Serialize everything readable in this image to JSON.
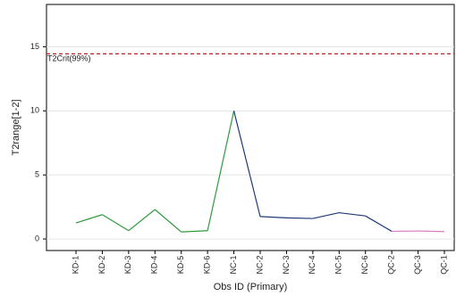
{
  "chart_data": {
    "type": "line",
    "x_label": "Obs ID (Primary)",
    "y_label": "T2range[1-2]",
    "categories": [
      "KD-1",
      "KD-2",
      "KD-3",
      "KD-4",
      "KD-5",
      "KD-6",
      "NC-1",
      "NC-2",
      "NC-3",
      "NC-4",
      "NC-5",
      "NC-6",
      "QC-2",
      "QC-3",
      "QC-1"
    ],
    "values": [
      1.25,
      1.9,
      0.65,
      2.3,
      0.55,
      0.65,
      10.0,
      1.75,
      1.65,
      1.6,
      2.05,
      1.8,
      0.6,
      0.62,
      0.58
    ],
    "point_colors": [
      "#2e9a3e",
      "#2e9a3e",
      "#2e9a3e",
      "#2e9a3e",
      "#2e9a3e",
      "#2e9a3e",
      "#1f3a78",
      "#1f3a78",
      "#1f3a78",
      "#1f3a78",
      "#1f3a78",
      "#1f3a78",
      "#d67fc4",
      "#d67fc4",
      "#d67fc4"
    ],
    "reference_line": {
      "value": 14.45,
      "label": "T2Crit(99%)",
      "color": "#c0201c"
    },
    "ylim": [
      -0.9,
      18.3
    ],
    "yticks": [
      0,
      5,
      10,
      15
    ],
    "grid": true
  }
}
